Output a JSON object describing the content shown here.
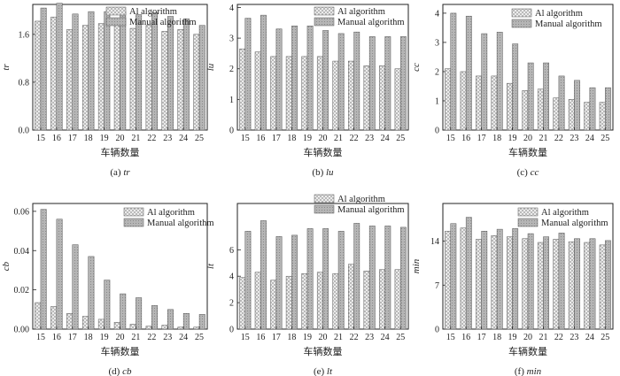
{
  "colors": {
    "ai_fill": "#e6e6e6",
    "manual_fill": "#b8b8b8",
    "frame": "#222222"
  },
  "chart_data": [
    {
      "type": "bar",
      "id": "tr",
      "caption_prefix": "(a) ",
      "caption_italic": "tr",
      "ylabel": "tr",
      "xlabel": "车辆数量",
      "ylim": [
        0,
        2.1
      ],
      "yticks": [
        "0.0",
        "0.8",
        "1.6"
      ],
      "ytick_values": [
        0.0,
        0.8,
        1.6
      ],
      "categories": [
        "15",
        "16",
        "17",
        "18",
        "19",
        "20",
        "21",
        "22",
        "23",
        "24",
        "25"
      ],
      "legend": "top-right",
      "series": [
        {
          "name": "Al algorithm",
          "values": [
            1.82,
            1.89,
            1.68,
            1.75,
            1.78,
            1.77,
            1.7,
            1.75,
            1.65,
            1.68,
            1.6
          ]
        },
        {
          "name": "Manual algorithm",
          "values": [
            2.04,
            2.12,
            1.94,
            1.98,
            1.98,
            1.98,
            1.93,
            1.96,
            1.9,
            1.86,
            1.75
          ]
        }
      ]
    },
    {
      "type": "bar",
      "id": "lu",
      "caption_prefix": "(b) ",
      "caption_italic": "lu",
      "ylabel": "lu",
      "xlabel": "车辆数量",
      "ylim": [
        0,
        4.1
      ],
      "yticks": [
        "0",
        "1",
        "2",
        "3",
        "4"
      ],
      "ytick_values": [
        0,
        1,
        2,
        3,
        4
      ],
      "categories": [
        "15",
        "16",
        "17",
        "18",
        "19",
        "20",
        "21",
        "22",
        "23",
        "24",
        "25"
      ],
      "legend": "top-right",
      "series": [
        {
          "name": "Al algorithm",
          "values": [
            2.65,
            2.55,
            2.4,
            2.4,
            2.4,
            2.4,
            2.25,
            2.25,
            2.1,
            2.1,
            2.0
          ]
        },
        {
          "name": "Manual algorithm",
          "values": [
            3.65,
            3.75,
            3.3,
            3.4,
            3.4,
            3.25,
            3.15,
            3.2,
            3.05,
            3.05,
            3.05
          ]
        }
      ]
    },
    {
      "type": "bar",
      "id": "cc",
      "caption_prefix": "(c) ",
      "caption_italic": "cc",
      "ylabel": "cc",
      "xlabel": "车辆数量",
      "ylim": [
        0,
        4.3
      ],
      "yticks": [
        "0",
        "1",
        "2",
        "3",
        "4"
      ],
      "ytick_values": [
        0,
        1,
        2,
        3,
        4
      ],
      "categories": [
        "15",
        "16",
        "17",
        "18",
        "19",
        "20",
        "21",
        "22",
        "23",
        "24",
        "25"
      ],
      "legend": "top-right",
      "series": [
        {
          "name": "Al algorithm",
          "values": [
            2.1,
            2.0,
            1.85,
            1.85,
            1.6,
            1.35,
            1.4,
            1.1,
            1.05,
            0.95,
            0.95
          ]
        },
        {
          "name": "Manual algorithm",
          "values": [
            4.0,
            3.9,
            3.3,
            3.35,
            2.95,
            2.3,
            2.3,
            1.85,
            1.7,
            1.45,
            1.45
          ]
        }
      ]
    },
    {
      "type": "bar",
      "id": "cb",
      "caption_prefix": "(d) ",
      "caption_italic": "cb",
      "ylabel": "cb",
      "xlabel": "车辆数量",
      "ylim": [
        0,
        0.064
      ],
      "yticks": [
        "0.00",
        "0.02",
        "0.04",
        "0.06"
      ],
      "ytick_values": [
        0,
        0.02,
        0.04,
        0.06
      ],
      "categories": [
        "15",
        "16",
        "17",
        "18",
        "19",
        "20",
        "21",
        "22",
        "23",
        "24",
        "25"
      ],
      "legend": "top-right",
      "series": [
        {
          "name": "Al algorithm",
          "values": [
            0.0135,
            0.0115,
            0.008,
            0.0065,
            0.005,
            0.0035,
            0.0025,
            0.0015,
            0.002,
            0.001,
            0.001
          ]
        },
        {
          "name": "Manual algorithm",
          "values": [
            0.061,
            0.056,
            0.043,
            0.037,
            0.025,
            0.018,
            0.016,
            0.012,
            0.01,
            0.008,
            0.0075
          ]
        }
      ]
    },
    {
      "type": "bar",
      "id": "lt",
      "caption_prefix": "(e) ",
      "caption_italic": "lt",
      "ylabel": "lt",
      "xlabel": "车辆数量",
      "ylim": [
        0,
        9.5
      ],
      "yticks": [
        "0",
        "2",
        "4",
        "6"
      ],
      "ytick_values": [
        0,
        2,
        4,
        6
      ],
      "categories": [
        "15",
        "16",
        "17",
        "18",
        "19",
        "20",
        "21",
        "22",
        "23",
        "24",
        "25"
      ],
      "legend": "top-right",
      "series": [
        {
          "name": "Al algorithm",
          "values": [
            3.9,
            4.3,
            3.7,
            4.0,
            4.2,
            4.3,
            4.2,
            4.9,
            4.4,
            4.5,
            4.5
          ]
        },
        {
          "name": "Manual algorithm",
          "values": [
            7.4,
            8.2,
            7.0,
            7.1,
            7.6,
            7.6,
            7.4,
            8.0,
            7.8,
            7.8,
            7.7
          ]
        }
      ]
    },
    {
      "type": "bar",
      "id": "min",
      "caption_prefix": "(f) ",
      "caption_italic": "min",
      "ylabel": "min",
      "xlabel": "车辆数量",
      "ylim": [
        0,
        20
      ],
      "yticks": [
        "0",
        "7",
        "14"
      ],
      "ytick_values": [
        0,
        7,
        14
      ],
      "categories": [
        "15",
        "16",
        "17",
        "18",
        "19",
        "20",
        "21",
        "22",
        "23",
        "24",
        "25"
      ],
      "legend": "top-right",
      "series": [
        {
          "name": "Al algorithm",
          "values": [
            15.6,
            16.1,
            14.3,
            14.9,
            14.7,
            14.4,
            13.8,
            14.3,
            13.9,
            13.8,
            13.4
          ]
        },
        {
          "name": "Manual algorithm",
          "values": [
            16.8,
            17.8,
            15.6,
            15.9,
            16.0,
            15.2,
            14.7,
            15.3,
            14.4,
            14.4,
            14.1
          ]
        }
      ]
    }
  ]
}
